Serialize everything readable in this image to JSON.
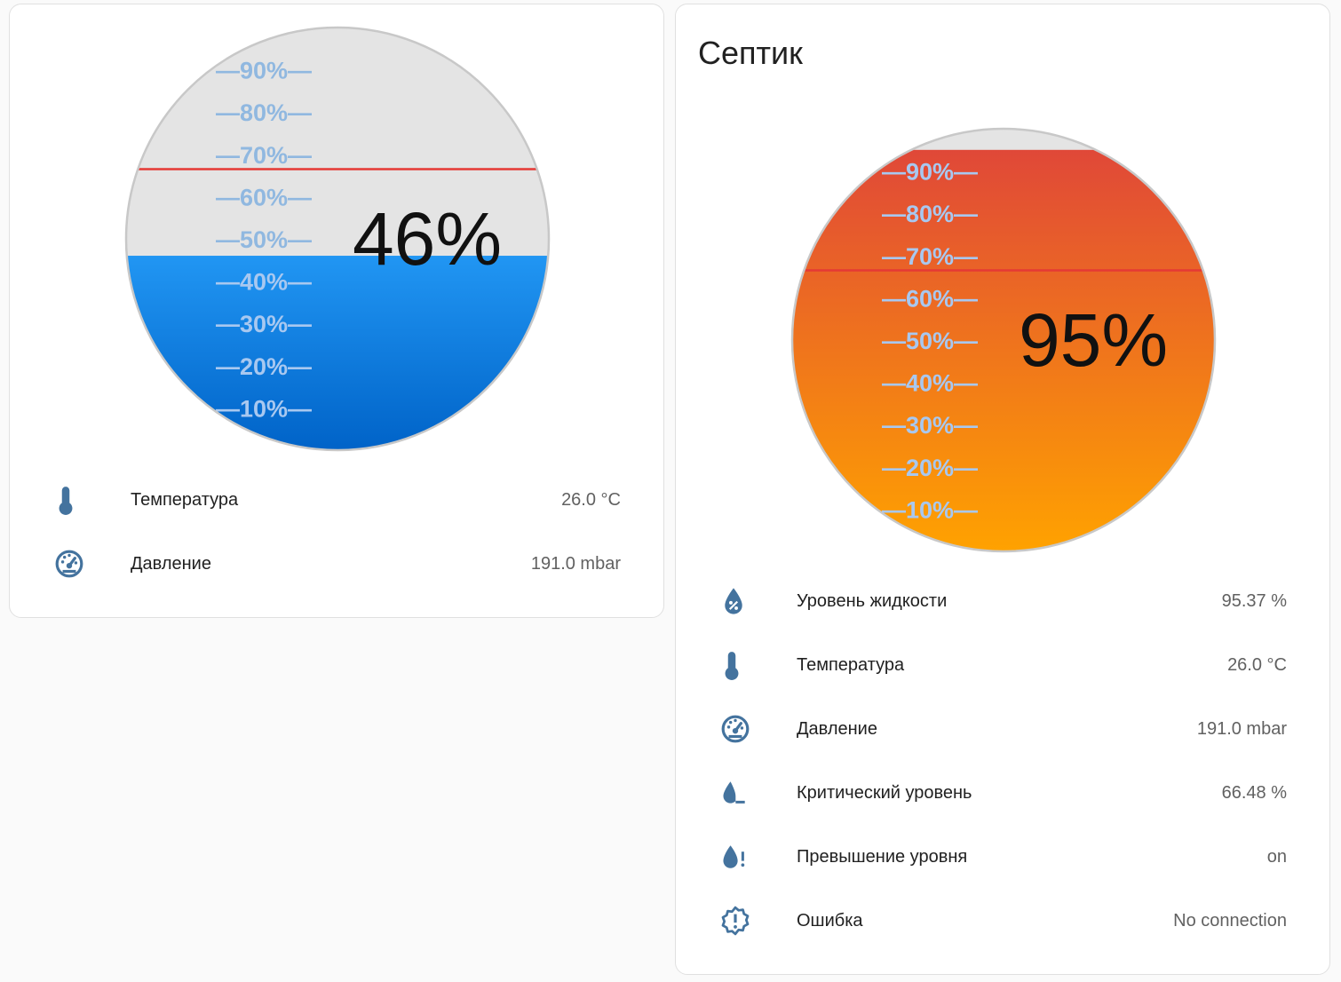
{
  "colors": {
    "water_top": "#2196F3",
    "water_bottom": "#0063c8",
    "septic_top": "#e04838",
    "septic_bottom": "#ffa200",
    "empty": "#e4e4e4",
    "critical_line": "#e53935",
    "scale_on_empty": "#90b8e0",
    "scale_on_fill": "#a8c8f0",
    "icon": "#44739e"
  },
  "scale_labels": [
    "—90%—",
    "—80%—",
    "—70%—",
    "—60%—",
    "—50%—",
    "—40%—",
    "—30%—",
    "—20%—",
    "—10%—"
  ],
  "cards": [
    {
      "title": "",
      "level_percent": 46,
      "level_text": "46%",
      "critical_percent": 66.48,
      "fill": "water",
      "rows": [
        {
          "icon": "thermometer-icon",
          "label": "Температура",
          "value": "26.0 °C"
        },
        {
          "icon": "gauge-icon",
          "label": "Давление",
          "value": "191.0 mbar"
        }
      ]
    },
    {
      "title": "Септик",
      "level_percent": 95,
      "level_text": "95%",
      "critical_percent": 66.48,
      "fill": "septic",
      "rows": [
        {
          "icon": "water-percent-icon",
          "label": "Уровень жидкости",
          "value": "95.37 %"
        },
        {
          "icon": "thermometer-icon",
          "label": "Температура",
          "value": "26.0 °C"
        },
        {
          "icon": "gauge-icon",
          "label": "Давление",
          "value": "191.0 mbar"
        },
        {
          "icon": "water-minus-icon",
          "label": "Критический уровень",
          "value": "66.48 %"
        },
        {
          "icon": "water-alert-icon",
          "label": "Превышение уровня",
          "value": "on"
        },
        {
          "icon": "alert-decagram-icon",
          "label": "Ошибка",
          "value": "No connection"
        }
      ]
    }
  ]
}
